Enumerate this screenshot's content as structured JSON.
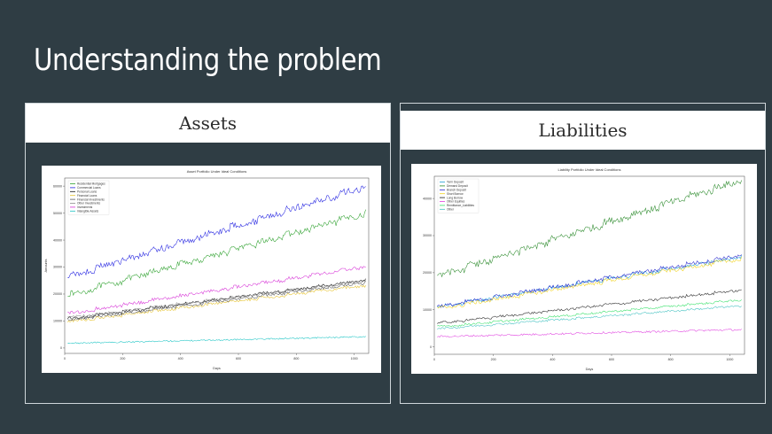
{
  "slide": {
    "title": "Understanding the problem"
  },
  "panels": [
    {
      "header": "Assets"
    },
    {
      "header": "Liabilities"
    }
  ],
  "chart_data": [
    {
      "type": "line",
      "title": "Asset Portfolio Under Ideal Conditions",
      "xlabel": "Days",
      "ylabel": "Amounts",
      "xlim": [
        0,
        1050
      ],
      "ylim": [
        -2000,
        63000
      ],
      "xticks": [
        0,
        200,
        400,
        600,
        800,
        1000
      ],
      "yticks": [
        0,
        10000,
        20000,
        30000,
        40000,
        50000,
        60000
      ],
      "legend_position": "top-left",
      "series": [
        {
          "name": "Residential Mortgages",
          "color": "#2ca02c",
          "start": 20000,
          "end": 50500
        },
        {
          "name": "Commercial Loans",
          "color": "#1f1fe0",
          "start": 27000,
          "end": 60500
        },
        {
          "name": "Personal Loans",
          "color": "#111111",
          "start": 11000,
          "end": 25500
        },
        {
          "name": "Financial Loans",
          "color": "#e6c229",
          "start": 10000,
          "end": 23500
        },
        {
          "name": "Financial Investments",
          "color": "#5a5a5a",
          "start": 10500,
          "end": 24500
        },
        {
          "name": "Other Investments",
          "color": "#8c8c8c",
          "start": 11500,
          "end": 25000
        },
        {
          "name": "Investments",
          "color": "#d62fd6",
          "start": 13000,
          "end": 30500
        },
        {
          "name": "Intangible Assets",
          "color": "#17c3c3",
          "start": 1800,
          "end": 4200
        }
      ]
    },
    {
      "type": "line",
      "title": "Liability Portfolio Under Ideal Conditions",
      "xlabel": "Days",
      "ylabel": "",
      "xlim": [
        0,
        1050
      ],
      "ylim": [
        -2000,
        46000
      ],
      "xticks": [
        0,
        200,
        400,
        600,
        800,
        1000
      ],
      "yticks": [
        0,
        10000,
        20000,
        30000,
        40000
      ],
      "legend_position": "top-left",
      "series": [
        {
          "name": "Term Deposit",
          "color": "#1f9fd6",
          "start": 11000,
          "end": 24500
        },
        {
          "name": "Demand Deposit",
          "color": "#2b8a2b",
          "start": 19500,
          "end": 45500
        },
        {
          "name": "Branch Deposit",
          "color": "#2222cc",
          "start": 11000,
          "end": 25000
        },
        {
          "name": "Short Borrow",
          "color": "#f2d21b",
          "start": 10500,
          "end": 24000
        },
        {
          "name": "Long Borrow",
          "color": "#222222",
          "start": 6500,
          "end": 15500
        },
        {
          "name": "Other Equities",
          "color": "#e040e0",
          "start": 2800,
          "end": 4700
        },
        {
          "name": "Remittance_Liabilities",
          "color": "#33e066",
          "start": 5500,
          "end": 12800
        },
        {
          "name": "Other",
          "color": "#40c0c0",
          "start": 5000,
          "end": 11200
        }
      ]
    }
  ]
}
